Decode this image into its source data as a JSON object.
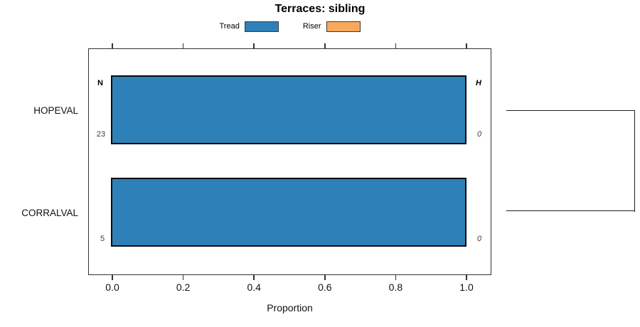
{
  "chart_data": {
    "type": "bar",
    "orientation": "horizontal",
    "title": "Terraces: sibling",
    "xlabel": "Proportion",
    "xlim": [
      0,
      1
    ],
    "xticks": [
      "0.0",
      "0.2",
      "0.4",
      "0.6",
      "0.8",
      "1.0"
    ],
    "categories": [
      "HOPEVAL",
      "CORRALVAL"
    ],
    "series": [
      {
        "name": "Tread",
        "color": "#2E81B8",
        "values": [
          1.0,
          1.0
        ]
      },
      {
        "name": "Riser",
        "color": "#FAA85C",
        "values": [
          0.0,
          0.0
        ]
      }
    ],
    "annotations": {
      "count_header": "N",
      "height_header": "H",
      "counts": [
        "23",
        "5"
      ],
      "heights": [
        "0",
        "0"
      ]
    },
    "legend_position": "top-center",
    "grid": false,
    "right_annotation": "dendrogram-bracket joining HOPEVAL and CORRALVAL"
  },
  "colors": {
    "tread_fill": "#2E81B8",
    "riser_fill": "#FAA85C",
    "bar_border": "#0a0a0a",
    "axis": "#333333",
    "text": "#111111",
    "background": "#FFFFFF"
  }
}
